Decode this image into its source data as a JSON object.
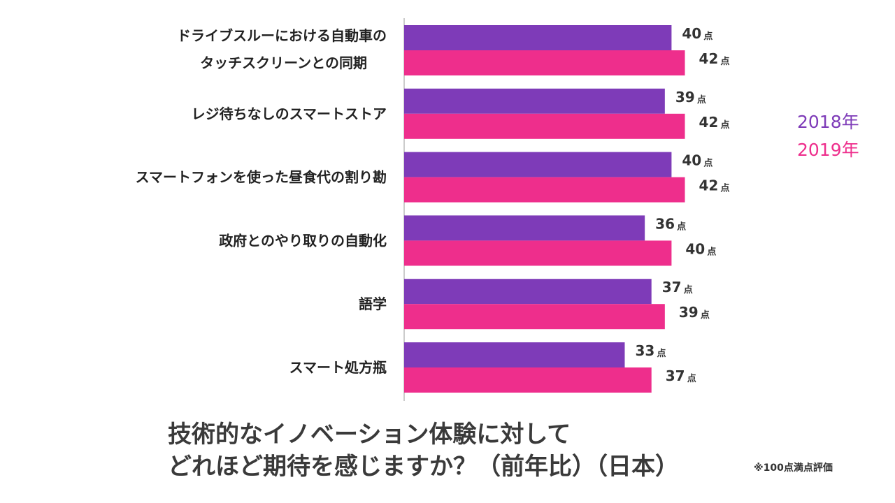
{
  "chart_data": {
    "type": "bar",
    "orientation": "horizontal",
    "title": [
      "技術的なイノベーション体験に対して",
      "どれほど期待を感じますか？（前年比）（日本）"
    ],
    "footnote": "※100点満点評価",
    "unit": "点",
    "categories": [
      [
        "ドライブスルーにおける自動車の",
        "タッチスクリーンとの同期"
      ],
      [
        "レジ待ちなしのスマートストア"
      ],
      [
        "スマートフォンを使った昼食代の割り勘"
      ],
      [
        "政府とのやり取りの自動化"
      ],
      [
        "語学"
      ],
      [
        "スマート処方瓶"
      ]
    ],
    "series": [
      {
        "name": "2018年",
        "color": "#7e3bb8",
        "values": [
          40,
          39,
          40,
          36,
          37,
          33
        ]
      },
      {
        "name": "2019年",
        "color": "#ee2e8c",
        "values": [
          42,
          42,
          42,
          40,
          39,
          37
        ]
      }
    ],
    "legend_position": "right",
    "grid": false
  }
}
